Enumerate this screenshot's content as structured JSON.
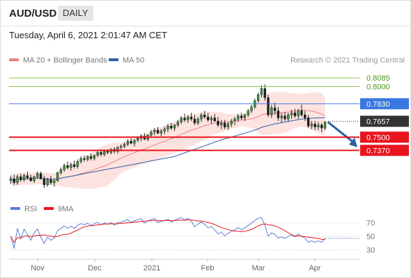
{
  "header": {
    "symbol": "AUD/USD",
    "timeframe": "DAILY"
  },
  "datetime": "Tuesday, April 6, 2021 2:01:47 AM CET",
  "legend": {
    "ma20": {
      "label": "MA 20 + Bollinger Bands",
      "color": "#f08080"
    },
    "ma50": {
      "label": "MA 50",
      "color": "#2f5fa8"
    }
  },
  "credit": "Research © 2021 Trading Central",
  "chart_data": [
    {
      "type": "candlestick",
      "x_labels": [
        "Nov",
        "Dec",
        "2021",
        "Feb",
        "Mar",
        "Apr"
      ],
      "levels": [
        {
          "value": 0.8085,
          "label": "0.8085",
          "color": "#8fc24a",
          "kind": "resistance"
        },
        {
          "value": 0.8,
          "label": "0.8000",
          "color": "#8fc24a",
          "kind": "resistance"
        },
        {
          "value": 0.783,
          "label": "0.7830",
          "color": "#3a78e0",
          "kind": "pivot"
        },
        {
          "value": 0.7657,
          "label": "0.7657",
          "color": "#333333",
          "kind": "last price"
        },
        {
          "value": 0.75,
          "label": "0.7500",
          "color": "#e8141e",
          "kind": "support"
        },
        {
          "value": 0.737,
          "label": "0.7370",
          "color": "#e8141e",
          "kind": "support"
        }
      ],
      "forecast_direction": "down",
      "ylim": [
        0.694,
        0.8175
      ],
      "ohlc_approx": [
        [
          0.707,
          0.712,
          0.704,
          0.709
        ],
        [
          0.709,
          0.713,
          0.703,
          0.705
        ],
        [
          0.705,
          0.713,
          0.703,
          0.711
        ],
        [
          0.711,
          0.714,
          0.706,
          0.708
        ],
        [
          0.708,
          0.714,
          0.706,
          0.712
        ],
        [
          0.712,
          0.716,
          0.708,
          0.71
        ],
        [
          0.71,
          0.713,
          0.706,
          0.707
        ],
        [
          0.707,
          0.712,
          0.705,
          0.711
        ],
        [
          0.711,
          0.716,
          0.709,
          0.714
        ],
        [
          0.714,
          0.716,
          0.708,
          0.709
        ],
        [
          0.709,
          0.712,
          0.7,
          0.703
        ],
        [
          0.703,
          0.71,
          0.701,
          0.708
        ],
        [
          0.708,
          0.712,
          0.703,
          0.705
        ],
        [
          0.705,
          0.709,
          0.701,
          0.707
        ],
        [
          0.707,
          0.716,
          0.706,
          0.715
        ],
        [
          0.715,
          0.72,
          0.713,
          0.718
        ],
        [
          0.718,
          0.724,
          0.716,
          0.722
        ],
        [
          0.722,
          0.726,
          0.718,
          0.72
        ],
        [
          0.72,
          0.725,
          0.717,
          0.723
        ],
        [
          0.723,
          0.727,
          0.719,
          0.721
        ],
        [
          0.721,
          0.728,
          0.719,
          0.726
        ],
        [
          0.726,
          0.731,
          0.724,
          0.729
        ],
        [
          0.729,
          0.732,
          0.726,
          0.728
        ],
        [
          0.728,
          0.732,
          0.726,
          0.731
        ],
        [
          0.731,
          0.734,
          0.727,
          0.729
        ],
        [
          0.729,
          0.733,
          0.727,
          0.732
        ],
        [
          0.732,
          0.737,
          0.73,
          0.735
        ],
        [
          0.735,
          0.738,
          0.731,
          0.733
        ],
        [
          0.733,
          0.737,
          0.731,
          0.736
        ],
        [
          0.736,
          0.738,
          0.733,
          0.735
        ],
        [
          0.735,
          0.739,
          0.733,
          0.738
        ],
        [
          0.738,
          0.74,
          0.734,
          0.736
        ],
        [
          0.736,
          0.741,
          0.734,
          0.74
        ],
        [
          0.74,
          0.743,
          0.737,
          0.741
        ],
        [
          0.741,
          0.745,
          0.739,
          0.743
        ],
        [
          0.743,
          0.748,
          0.741,
          0.746
        ],
        [
          0.746,
          0.749,
          0.743,
          0.744
        ],
        [
          0.744,
          0.748,
          0.741,
          0.747
        ],
        [
          0.747,
          0.751,
          0.745,
          0.749
        ],
        [
          0.749,
          0.753,
          0.746,
          0.751
        ],
        [
          0.751,
          0.754,
          0.747,
          0.748
        ],
        [
          0.748,
          0.753,
          0.746,
          0.752
        ],
        [
          0.752,
          0.757,
          0.75,
          0.755
        ],
        [
          0.755,
          0.759,
          0.752,
          0.757
        ],
        [
          0.757,
          0.76,
          0.753,
          0.754
        ],
        [
          0.754,
          0.758,
          0.751,
          0.756
        ],
        [
          0.756,
          0.76,
          0.753,
          0.758
        ],
        [
          0.758,
          0.763,
          0.755,
          0.761
        ],
        [
          0.761,
          0.764,
          0.757,
          0.759
        ],
        [
          0.759,
          0.763,
          0.756,
          0.762
        ],
        [
          0.762,
          0.767,
          0.76,
          0.765
        ],
        [
          0.765,
          0.771,
          0.763,
          0.769
        ],
        [
          0.769,
          0.773,
          0.765,
          0.767
        ],
        [
          0.767,
          0.772,
          0.764,
          0.77
        ],
        [
          0.77,
          0.774,
          0.766,
          0.768
        ],
        [
          0.768,
          0.772,
          0.762,
          0.764
        ],
        [
          0.764,
          0.77,
          0.762,
          0.768
        ],
        [
          0.768,
          0.774,
          0.765,
          0.772
        ],
        [
          0.772,
          0.776,
          0.768,
          0.77
        ],
        [
          0.77,
          0.774,
          0.765,
          0.767
        ],
        [
          0.767,
          0.771,
          0.763,
          0.769
        ],
        [
          0.769,
          0.773,
          0.765,
          0.766
        ],
        [
          0.766,
          0.77,
          0.76,
          0.762
        ],
        [
          0.762,
          0.767,
          0.758,
          0.764
        ],
        [
          0.764,
          0.767,
          0.758,
          0.76
        ],
        [
          0.76,
          0.765,
          0.757,
          0.763
        ],
        [
          0.763,
          0.768,
          0.76,
          0.766
        ],
        [
          0.766,
          0.77,
          0.762,
          0.768
        ],
        [
          0.768,
          0.773,
          0.765,
          0.771
        ],
        [
          0.771,
          0.774,
          0.767,
          0.769
        ],
        [
          0.769,
          0.773,
          0.766,
          0.772
        ],
        [
          0.772,
          0.778,
          0.77,
          0.776
        ],
        [
          0.776,
          0.782,
          0.774,
          0.78
        ],
        [
          0.78,
          0.788,
          0.778,
          0.786
        ],
        [
          0.786,
          0.794,
          0.784,
          0.792
        ],
        [
          0.792,
          0.801,
          0.789,
          0.798
        ],
        [
          0.798,
          0.802,
          0.786,
          0.789
        ],
        [
          0.789,
          0.792,
          0.77,
          0.772
        ],
        [
          0.772,
          0.782,
          0.769,
          0.779
        ],
        [
          0.779,
          0.784,
          0.772,
          0.776
        ],
        [
          0.776,
          0.78,
          0.766,
          0.769
        ],
        [
          0.769,
          0.774,
          0.764,
          0.771
        ],
        [
          0.771,
          0.775,
          0.766,
          0.768
        ],
        [
          0.768,
          0.774,
          0.765,
          0.772
        ],
        [
          0.772,
          0.777,
          0.768,
          0.774
        ],
        [
          0.774,
          0.778,
          0.769,
          0.771
        ],
        [
          0.771,
          0.778,
          0.768,
          0.776
        ],
        [
          0.776,
          0.782,
          0.77,
          0.772
        ],
        [
          0.772,
          0.776,
          0.766,
          0.769
        ],
        [
          0.769,
          0.772,
          0.759,
          0.761
        ],
        [
          0.761,
          0.766,
          0.758,
          0.763
        ],
        [
          0.763,
          0.766,
          0.757,
          0.76
        ],
        [
          0.76,
          0.765,
          0.757,
          0.762
        ],
        [
          0.762,
          0.764,
          0.755,
          0.759
        ],
        [
          0.759,
          0.766,
          0.757,
          0.765
        ]
      ]
    },
    {
      "type": "line",
      "legend": [
        {
          "name": "RSI",
          "color": "#5b7fd4"
        },
        {
          "name": "9MA",
          "color": "#e8141e"
        }
      ],
      "y_ticks": [
        70,
        50,
        30
      ],
      "ylim": [
        20,
        80
      ]
    }
  ]
}
